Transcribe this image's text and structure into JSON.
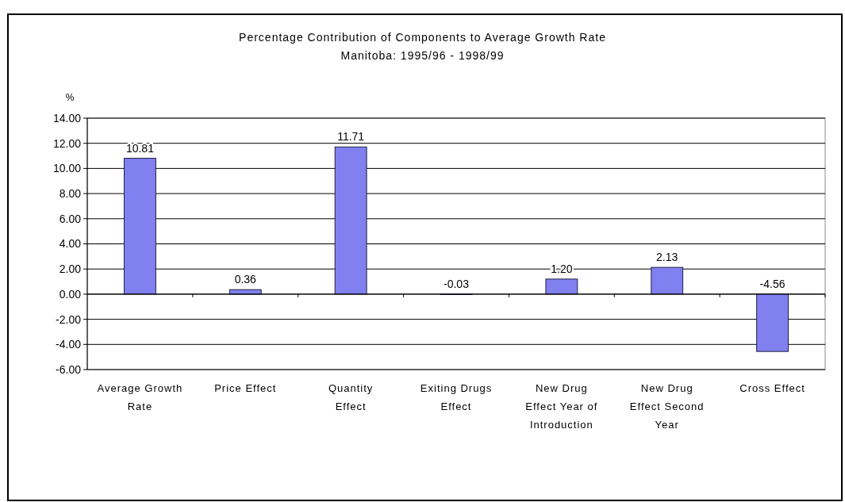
{
  "chart_data": {
    "type": "bar",
    "title": "Percentage Contribution of Components to Average Growth Rate",
    "subtitle": "Manitoba: 1995/96 - 1998/99",
    "ylabel": "%",
    "categories": [
      "Average Growth Rate",
      "Price Effect",
      "Quantity Effect",
      "Exiting Drugs Effect",
      "New Drug Effect Year of Introduction",
      "New Drug Effect Second Year",
      "Cross Effect"
    ],
    "values": [
      10.81,
      0.36,
      11.71,
      -0.03,
      1.2,
      2.13,
      -4.56
    ],
    "value_labels": [
      "10.81",
      "0.36",
      "11.71",
      "-0.03",
      "1.20",
      "2.13",
      "-4.56"
    ],
    "color": "#8080f0",
    "ylim": [
      -6,
      14
    ],
    "yticks": [
      {
        "value": -6,
        "label": "-6.00"
      },
      {
        "value": -4,
        "label": "-4.00"
      },
      {
        "value": -2,
        "label": "-2.00"
      },
      {
        "value": 0,
        "label": "0.00"
      },
      {
        "value": 2,
        "label": "2.00"
      },
      {
        "value": 4,
        "label": "4.00"
      },
      {
        "value": 6,
        "label": "6.00"
      },
      {
        "value": 8,
        "label": "8.00"
      },
      {
        "value": 10,
        "label": "10.00"
      },
      {
        "value": 12,
        "label": "12.00"
      },
      {
        "value": 14,
        "label": "14.00"
      }
    ],
    "grid": "y"
  }
}
